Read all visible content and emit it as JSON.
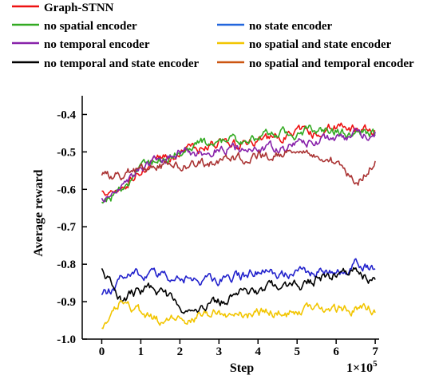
{
  "chart_data": {
    "type": "line",
    "title": "",
    "xlabel": "Step",
    "ylabel": "Average reward",
    "x_multiplier": "1×10",
    "x_multiplier_exp": "5",
    "xlim": [
      -0.5,
      7.1
    ],
    "ylim": [
      -1.0,
      -0.35
    ],
    "xticks": [
      "0",
      "1",
      "2",
      "3",
      "4",
      "5",
      "6",
      "7"
    ],
    "yticks": [
      "-0.4",
      "-0.5",
      "-0.6",
      "-0.7",
      "-0.8",
      "-0.9",
      "-1.0"
    ],
    "grid": false,
    "legend_position": "top",
    "series": [
      {
        "name": "Graph-STNN",
        "color": "#ee1111",
        "x": [
          0,
          0.5,
          1,
          1.5,
          2,
          2.5,
          3,
          3.5,
          4,
          4.5,
          5,
          5.5,
          6,
          6.5,
          7
        ],
        "y": [
          -0.61,
          -0.6,
          -0.55,
          -0.52,
          -0.51,
          -0.49,
          -0.47,
          -0.48,
          -0.47,
          -0.46,
          -0.45,
          -0.45,
          -0.43,
          -0.44,
          -0.44
        ]
      },
      {
        "name": "no spatial encoder",
        "color": "#33aa22",
        "x": [
          0,
          0.5,
          1,
          1.5,
          2,
          2.5,
          3,
          3.5,
          4,
          4.5,
          5,
          5.5,
          6,
          6.5,
          7
        ],
        "y": [
          -0.64,
          -0.6,
          -0.55,
          -0.52,
          -0.5,
          -0.48,
          -0.47,
          -0.47,
          -0.46,
          -0.45,
          -0.45,
          -0.44,
          -0.44,
          -0.45,
          -0.45
        ]
      },
      {
        "name": "no temporal encoder",
        "color": "#8822aa",
        "x": [
          0,
          0.5,
          1,
          1.5,
          2,
          2.5,
          3,
          3.5,
          4,
          4.5,
          5,
          5.5,
          6,
          6.5,
          7
        ],
        "y": [
          -0.63,
          -0.58,
          -0.54,
          -0.52,
          -0.5,
          -0.5,
          -0.49,
          -0.49,
          -0.49,
          -0.49,
          -0.48,
          -0.47,
          -0.47,
          -0.46,
          -0.45
        ]
      },
      {
        "name": "no spatial and temporal encoder",
        "color": "#aa3333",
        "x": [
          0,
          0.5,
          1,
          1.5,
          2,
          2.5,
          3,
          3.5,
          4,
          4.5,
          5,
          5.5,
          6,
          6.5,
          7
        ],
        "y": [
          -0.57,
          -0.56,
          -0.55,
          -0.54,
          -0.54,
          -0.53,
          -0.53,
          -0.52,
          -0.51,
          -0.51,
          -0.5,
          -0.51,
          -0.53,
          -0.59,
          -0.52
        ]
      },
      {
        "name": "no state encoder",
        "color": "#2222cc",
        "x": [
          0,
          0.5,
          1,
          1.5,
          2,
          2.5,
          3,
          3.5,
          4,
          4.5,
          5,
          5.5,
          6,
          6.5,
          7
        ],
        "y": [
          -0.89,
          -0.84,
          -0.83,
          -0.83,
          -0.84,
          -0.84,
          -0.84,
          -0.83,
          -0.82,
          -0.83,
          -0.82,
          -0.82,
          -0.82,
          -0.8,
          -0.81
        ]
      },
      {
        "name": "no temporal and state encoder",
        "color": "#000000",
        "x": [
          0,
          0.5,
          1,
          1.5,
          2,
          2.5,
          3,
          3.5,
          4,
          4.5,
          5,
          5.5,
          6,
          6.5,
          7
        ],
        "y": [
          -0.82,
          -0.89,
          -0.87,
          -0.87,
          -0.92,
          -0.92,
          -0.9,
          -0.88,
          -0.87,
          -0.86,
          -0.86,
          -0.84,
          -0.83,
          -0.82,
          -0.84
        ]
      },
      {
        "name": "no spatial and state encoder",
        "color": "#f2c500",
        "x": [
          0,
          0.5,
          1,
          1.5,
          2,
          2.5,
          3,
          3.5,
          4,
          4.5,
          5,
          5.5,
          6,
          6.5,
          7
        ],
        "y": [
          -0.98,
          -0.9,
          -0.93,
          -0.95,
          -0.95,
          -0.94,
          -0.93,
          -0.94,
          -0.93,
          -0.93,
          -0.93,
          -0.92,
          -0.92,
          -0.92,
          -0.92
        ]
      }
    ]
  },
  "legend": [
    {
      "label": "Graph-STNN",
      "color": "#ee1111"
    },
    {
      "label": "no spatial encoder",
      "color": "#33aa22"
    },
    {
      "label": "no state encoder",
      "color": "#2266dd"
    },
    {
      "label": "no temporal encoder",
      "color": "#8822aa"
    },
    {
      "label": "no spatial and state encoder",
      "color": "#f2c500"
    },
    {
      "label": "no temporal and state encoder",
      "color": "#000000"
    },
    {
      "label": "no spatial and temporal encoder",
      "color": "#cc5511"
    }
  ]
}
